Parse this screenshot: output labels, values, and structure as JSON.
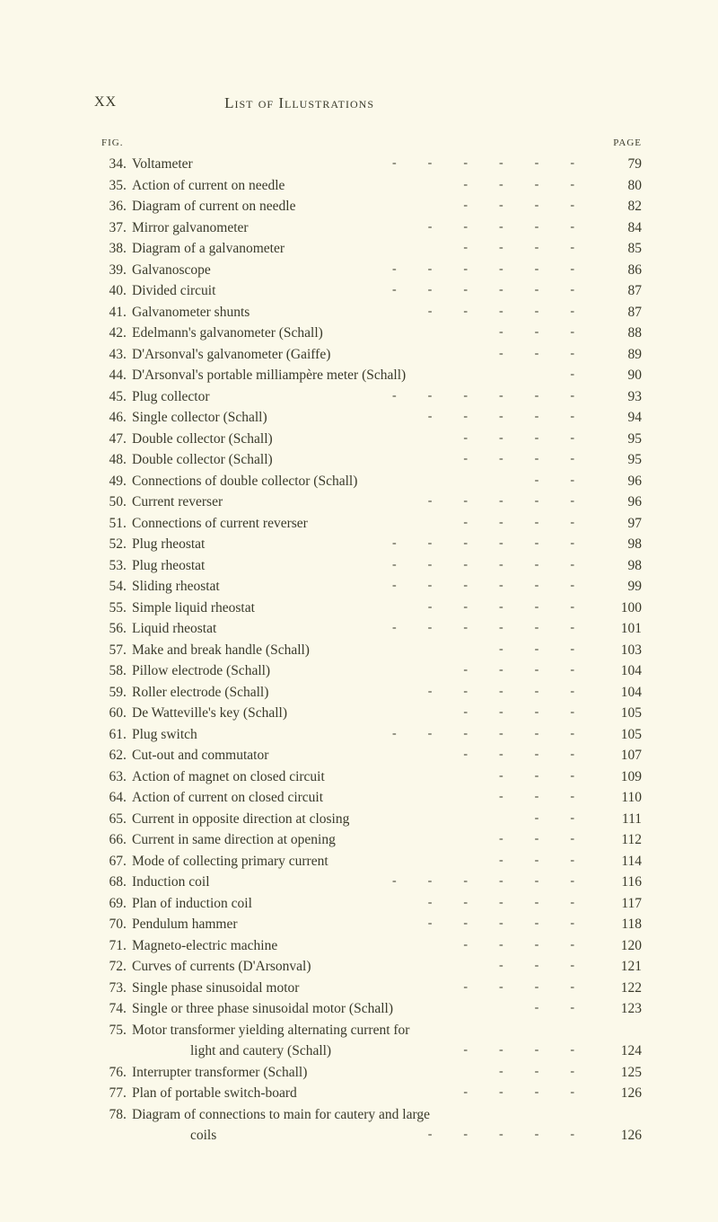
{
  "header": {
    "roman": "XX",
    "title": "List of Illustrations",
    "col_fig": "FIG.",
    "col_page": "PAGE"
  },
  "entries": [
    {
      "num": "34",
      "text": "Voltameter",
      "dashes": 6,
      "page": "79"
    },
    {
      "num": "35",
      "text": "Action of current on needle",
      "dashes": 4,
      "page": "80"
    },
    {
      "num": "36",
      "text": "Diagram of current on needle",
      "dashes": 4,
      "page": "82"
    },
    {
      "num": "37",
      "text": "Mirror galvanometer",
      "dashes": 5,
      "page": "84"
    },
    {
      "num": "38",
      "text": "Diagram of a galvanometer",
      "dashes": 4,
      "page": "85"
    },
    {
      "num": "39",
      "text": "Galvanoscope",
      "dashes": 6,
      "page": "86"
    },
    {
      "num": "40",
      "text": "Divided circuit",
      "dashes": 6,
      "page": "87"
    },
    {
      "num": "41",
      "text": "Galvanometer shunts",
      "dashes": 5,
      "page": "87"
    },
    {
      "num": "42",
      "text": "Edelmann's galvanometer (Schall)",
      "dashes": 3,
      "page": "88"
    },
    {
      "num": "43",
      "text": "D'Arsonval's galvanometer (Gaiffe)",
      "dashes": 3,
      "page": "89"
    },
    {
      "num": "44",
      "text": "D'Arsonval's portable milliampère meter (Schall)",
      "dashes": 1,
      "page": "90"
    },
    {
      "num": "45",
      "text": "Plug collector",
      "dashes": 6,
      "page": "93"
    },
    {
      "num": "46",
      "text": "Single collector (Schall)",
      "dashes": 5,
      "page": "94"
    },
    {
      "num": "47",
      "text": "Double collector (Schall)",
      "dashes": 4,
      "page": "95"
    },
    {
      "num": "48",
      "text": "Double collector (Schall)",
      "dashes": 4,
      "page": "95"
    },
    {
      "num": "49",
      "text": "Connections of double collector (Schall)",
      "dashes": 2,
      "page": "96"
    },
    {
      "num": "50",
      "text": "Current reverser",
      "dashes": 5,
      "page": "96"
    },
    {
      "num": "51",
      "text": "Connections of current reverser",
      "dashes": 4,
      "page": "97"
    },
    {
      "num": "52",
      "text": "Plug rheostat",
      "dashes": 6,
      "page": "98"
    },
    {
      "num": "53",
      "text": "Plug rheostat",
      "dashes": 6,
      "page": "98"
    },
    {
      "num": "54",
      "text": "Sliding rheostat",
      "dashes": 6,
      "page": "99"
    },
    {
      "num": "55",
      "text": "Simple liquid rheostat",
      "dashes": 5,
      "page": "100"
    },
    {
      "num": "56",
      "text": "Liquid rheostat",
      "dashes": 6,
      "page": "101"
    },
    {
      "num": "57",
      "text": "Make and break handle (Schall)",
      "dashes": 3,
      "page": "103"
    },
    {
      "num": "58",
      "text": "Pillow electrode (Schall)",
      "dashes": 4,
      "page": "104"
    },
    {
      "num": "59",
      "text": "Roller electrode (Schall)",
      "dashes": 5,
      "page": "104"
    },
    {
      "num": "60",
      "text": "De Watteville's key (Schall)",
      "dashes": 4,
      "page": "105"
    },
    {
      "num": "61",
      "text": "Plug switch",
      "dashes": 6,
      "page": "105"
    },
    {
      "num": "62",
      "text": "Cut-out and commutator",
      "dashes": 4,
      "page": "107"
    },
    {
      "num": "63",
      "text": "Action of magnet on closed circuit",
      "dashes": 3,
      "page": "109"
    },
    {
      "num": "64",
      "text": "Action of current on closed circuit",
      "dashes": 3,
      "page": "110"
    },
    {
      "num": "65",
      "text": "Current in opposite direction at closing",
      "dashes": 2,
      "page": "111"
    },
    {
      "num": "66",
      "text": "Current in same direction at opening",
      "dashes": 3,
      "page": "112"
    },
    {
      "num": "67",
      "text": "Mode of collecting primary current",
      "dashes": 3,
      "page": "114"
    },
    {
      "num": "68",
      "text": "Induction coil",
      "dashes": 6,
      "page": "116"
    },
    {
      "num": "69",
      "text": "Plan of induction coil",
      "dashes": 5,
      "page": "117"
    },
    {
      "num": "70",
      "text": "Pendulum hammer",
      "dashes": 5,
      "page": "118"
    },
    {
      "num": "71",
      "text": "Magneto-electric machine",
      "dashes": 4,
      "page": "120"
    },
    {
      "num": "72",
      "text": "Curves of currents (D'Arsonval)",
      "dashes": 3,
      "page": "121"
    },
    {
      "num": "73",
      "text": "Single phase sinusoidal motor",
      "dashes": 4,
      "page": "122"
    },
    {
      "num": "74",
      "text": "Single or three phase sinusoidal motor (Schall)",
      "dashes": 2,
      "page": "123"
    },
    {
      "num": "75",
      "text": "Motor transformer yielding alternating current for",
      "dashes": 0,
      "page": ""
    },
    {
      "num": "",
      "text": "light and cautery (Schall)",
      "dashes": 4,
      "page": "124",
      "indented": true
    },
    {
      "num": "76",
      "text": "Interrupter transformer (Schall)",
      "dashes": 3,
      "page": "125"
    },
    {
      "num": "77",
      "text": "Plan of portable switch-board",
      "dashes": 4,
      "page": "126"
    },
    {
      "num": "78",
      "text": "Diagram of connections to main for cautery and large",
      "dashes": 0,
      "page": ""
    },
    {
      "num": "",
      "text": "coils",
      "dashes": 5,
      "page": "126",
      "indented": true
    }
  ]
}
